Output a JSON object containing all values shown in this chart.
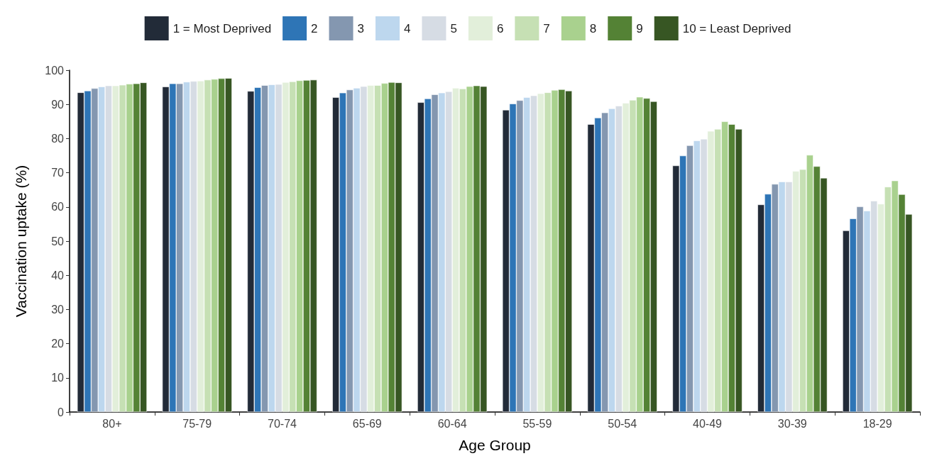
{
  "chart_data": {
    "type": "bar",
    "xlabel": "Age Group",
    "ylabel": "Vaccination uptake (%)",
    "categories": [
      "80+",
      "75-79",
      "70-74",
      "65-69",
      "60-64",
      "55-59",
      "50-54",
      "40-49",
      "30-39",
      "18-29"
    ],
    "series": [
      {
        "name": "1 = Most Deprived",
        "color": "#222b38",
        "values": [
          93.5,
          95.2,
          93.9,
          92.1,
          90.6,
          88.4,
          84.2,
          72.1,
          60.7,
          53.1
        ]
      },
      {
        "name": "2",
        "color": "#2e75b6",
        "values": [
          94.0,
          96.1,
          95.0,
          93.4,
          91.7,
          90.2,
          86.1,
          75.0,
          63.8,
          56.6
        ]
      },
      {
        "name": "3",
        "color": "#8497b0",
        "values": [
          94.7,
          96.1,
          95.6,
          94.3,
          92.9,
          91.2,
          87.6,
          78.0,
          66.7,
          60.1
        ]
      },
      {
        "name": "4",
        "color": "#bdd7ee",
        "values": [
          95.2,
          96.6,
          95.8,
          94.8,
          93.4,
          92.1,
          88.8,
          79.4,
          67.4,
          58.9
        ]
      },
      {
        "name": "5",
        "color": "#d6dce4",
        "values": [
          95.5,
          96.8,
          95.9,
          95.3,
          93.8,
          92.6,
          89.6,
          79.9,
          67.4,
          61.8
        ]
      },
      {
        "name": "6",
        "color": "#e2efda",
        "values": [
          95.5,
          96.9,
          96.5,
          95.6,
          94.8,
          93.2,
          90.4,
          82.2,
          70.5,
          60.9
        ]
      },
      {
        "name": "7",
        "color": "#c6e0b4",
        "values": [
          95.7,
          97.2,
          96.7,
          95.6,
          94.6,
          93.5,
          91.3,
          82.8,
          71.0,
          65.9
        ]
      },
      {
        "name": "8",
        "color": "#a9d18e",
        "values": [
          96.0,
          97.4,
          97.0,
          96.2,
          95.3,
          94.2,
          92.2,
          85.0,
          75.2,
          67.7
        ]
      },
      {
        "name": "9",
        "color": "#548235",
        "values": [
          96.1,
          97.6,
          97.1,
          96.5,
          95.5,
          94.4,
          91.8,
          84.2,
          71.9,
          63.7
        ]
      },
      {
        "name": "10 = Least Deprived",
        "color": "#375623",
        "values": [
          96.4,
          97.7,
          97.2,
          96.4,
          95.3,
          94.0,
          90.9,
          82.8,
          68.5,
          57.9
        ]
      }
    ],
    "ylim": [
      0,
      100
    ],
    "yticks": [
      0,
      10,
      20,
      30,
      40,
      50,
      60,
      70,
      80,
      90,
      100
    ],
    "grid": false,
    "legend": "top"
  }
}
